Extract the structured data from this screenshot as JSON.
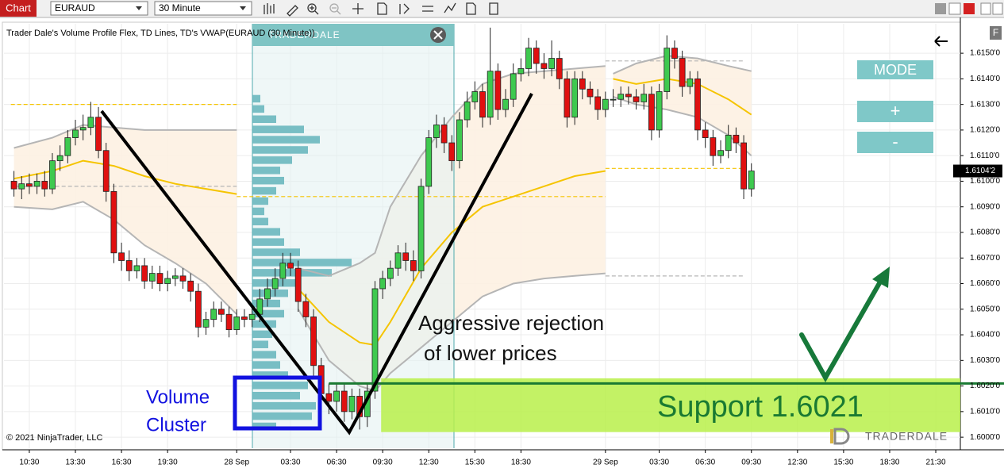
{
  "toolbar": {
    "app": "Chart",
    "instrument": "EURAUD",
    "timeframe": "30 Minute"
  },
  "controls": {
    "mode": "MODE",
    "plus": "+",
    "minus": "-"
  },
  "logo": "TRADERDALE",
  "copyright": "© 2021 NinjaTrader, LLC",
  "axis_button": "F",
  "chart_data": {
    "type": "candlestick",
    "title": "Trader Dale's Volume Profile Flex, TD Lines, TD's VWAP(EURAUD (30 Minute))",
    "up_color": "#3ec94f",
    "down_color": "#e01010",
    "grid": true,
    "xlim": [
      8.85,
      71.1
    ],
    "ylim": [
      1.59957,
      1.61615
    ],
    "xticks": [
      {
        "value": 10.5,
        "label": "10:30"
      },
      {
        "value": 13.5,
        "label": "13:30"
      },
      {
        "value": 16.5,
        "label": "16:30"
      },
      {
        "value": 19.5,
        "label": "19:30"
      },
      {
        "value": 24,
        "label": "28 Sep"
      },
      {
        "value": 27.5,
        "label": "03:30"
      },
      {
        "value": 30.5,
        "label": "06:30"
      },
      {
        "value": 33.5,
        "label": "09:30"
      },
      {
        "value": 36.5,
        "label": "12:30"
      },
      {
        "value": 39.5,
        "label": "15:30"
      },
      {
        "value": 42.5,
        "label": "18:30"
      },
      {
        "value": 48,
        "label": "29 Sep"
      },
      {
        "value": 51.5,
        "label": "03:30"
      },
      {
        "value": 54.5,
        "label": "06:30"
      },
      {
        "value": 57.5,
        "label": "09:30"
      },
      {
        "value": 60.5,
        "label": "12:30"
      },
      {
        "value": 63.5,
        "label": "15:30"
      },
      {
        "value": 66.5,
        "label": "18:30"
      },
      {
        "value": 69.5,
        "label": "21:30"
      }
    ],
    "yticks": [
      {
        "value": 1.6,
        "label": "1.6000'0"
      },
      {
        "value": 1.601,
        "label": "1.6010'0"
      },
      {
        "value": 1.602,
        "label": "1.6020'0"
      },
      {
        "value": 1.603,
        "label": "1.6030'0"
      },
      {
        "value": 1.604,
        "label": "1.6040'0"
      },
      {
        "value": 1.605,
        "label": "1.6050'0"
      },
      {
        "value": 1.606,
        "label": "1.6060'0"
      },
      {
        "value": 1.607,
        "label": "1.6070'0"
      },
      {
        "value": 1.608,
        "label": "1.6080'0"
      },
      {
        "value": 1.609,
        "label": "1.6090'0"
      },
      {
        "value": 1.61,
        "label": "1.6100'0"
      },
      {
        "value": 1.611,
        "label": "1.6110'0"
      },
      {
        "value": 1.612,
        "label": "1.6120'0"
      },
      {
        "value": 1.613,
        "label": "1.6130'0"
      },
      {
        "value": 1.614,
        "label": "1.6140'0"
      },
      {
        "value": 1.615,
        "label": "1.6150'0"
      }
    ],
    "last_price_label": "1.6104'2",
    "x": [
      9.5,
      10,
      10.5,
      11,
      11.5,
      12,
      12.5,
      13,
      13.5,
      14,
      14.5,
      15,
      15.5,
      16,
      16.5,
      17,
      17.5,
      18,
      18.5,
      19,
      19.5,
      20,
      20.5,
      21,
      21.5,
      22,
      22.5,
      23,
      23.5,
      24,
      24.5,
      25,
      25.5,
      26,
      26.5,
      27,
      27.5,
      28,
      28.5,
      29,
      29.5,
      30,
      30.5,
      31,
      31.5,
      32,
      32.5,
      33,
      33.5,
      34,
      34.5,
      35,
      35.5,
      36,
      36.5,
      37,
      37.5,
      38,
      38.5,
      39,
      39.5,
      40,
      40.5,
      41,
      41.5,
      42,
      42.5,
      43,
      43.5,
      44,
      44.5,
      45,
      45.5,
      46,
      46.5,
      47,
      47.5,
      48,
      48.5,
      49,
      49.5,
      50,
      50.5,
      51,
      51.5,
      52,
      52.5,
      53,
      53.5,
      54,
      54.5,
      55,
      55.5,
      56,
      56.5,
      57,
      57.5
    ],
    "ohlc": [
      [
        1.61,
        1.6104,
        1.6094,
        1.6097
      ],
      [
        1.6097,
        1.6102,
        1.6093,
        1.6099
      ],
      [
        1.6099,
        1.6103,
        1.6095,
        1.6098
      ],
      [
        1.6098,
        1.6103,
        1.6095,
        1.61
      ],
      [
        1.61,
        1.6104,
        1.6094,
        1.6097
      ],
      [
        1.6097,
        1.6111,
        1.6095,
        1.6108
      ],
      [
        1.6108,
        1.6114,
        1.6104,
        1.611
      ],
      [
        1.611,
        1.612,
        1.6107,
        1.6117
      ],
      [
        1.6117,
        1.6124,
        1.6114,
        1.612
      ],
      [
        1.612,
        1.6126,
        1.6116,
        1.6121
      ],
      [
        1.6121,
        1.6131,
        1.6118,
        1.6125
      ],
      [
        1.6125,
        1.6129,
        1.6109,
        1.6112
      ],
      [
        1.6112,
        1.6115,
        1.6092,
        1.6096
      ],
      [
        1.6096,
        1.6099,
        1.6068,
        1.6072
      ],
      [
        1.6072,
        1.6076,
        1.6065,
        1.6069
      ],
      [
        1.6069,
        1.6073,
        1.6061,
        1.6065
      ],
      [
        1.6065,
        1.607,
        1.6062,
        1.6067
      ],
      [
        1.6067,
        1.607,
        1.6058,
        1.6061
      ],
      [
        1.6061,
        1.6067,
        1.6058,
        1.6064
      ],
      [
        1.6064,
        1.6067,
        1.6057,
        1.606
      ],
      [
        1.606,
        1.6065,
        1.6057,
        1.6062
      ],
      [
        1.6062,
        1.6066,
        1.6059,
        1.6063
      ],
      [
        1.6063,
        1.6066,
        1.6058,
        1.6061
      ],
      [
        1.6061,
        1.6064,
        1.6053,
        1.6057
      ],
      [
        1.6057,
        1.606,
        1.6039,
        1.6043
      ],
      [
        1.6043,
        1.6049,
        1.604,
        1.6046
      ],
      [
        1.6046,
        1.6053,
        1.6043,
        1.605
      ],
      [
        1.605,
        1.6053,
        1.6045,
        1.6048
      ],
      [
        1.6048,
        1.6051,
        1.6039,
        1.6042
      ],
      [
        1.6042,
        1.605,
        1.604,
        1.6047
      ],
      [
        1.6047,
        1.605,
        1.6043,
        1.6046
      ],
      [
        1.6046,
        1.6051,
        1.6043,
        1.6048
      ],
      [
        1.6048,
        1.6058,
        1.6045,
        1.6054
      ],
      [
        1.6054,
        1.6062,
        1.6051,
        1.6058
      ],
      [
        1.6058,
        1.6066,
        1.6055,
        1.6062
      ],
      [
        1.6062,
        1.6072,
        1.6059,
        1.6068
      ],
      [
        1.6068,
        1.6072,
        1.6063,
        1.6066
      ],
      [
        1.6066,
        1.6069,
        1.6049,
        1.6053
      ],
      [
        1.6053,
        1.6056,
        1.6043,
        1.6047
      ],
      [
        1.6047,
        1.605,
        1.6024,
        1.6028
      ],
      [
        1.6028,
        1.6031,
        1.6013,
        1.6017
      ],
      [
        1.6017,
        1.6021,
        1.6009,
        1.6014
      ],
      [
        1.6014,
        1.6021,
        1.601,
        1.6018
      ],
      [
        1.6018,
        1.6021,
        1.6006,
        1.601
      ],
      [
        1.601,
        1.6019,
        1.6007,
        1.6016
      ],
      [
        1.6016,
        1.6019,
        1.6003,
        1.6008
      ],
      [
        1.6008,
        1.6021,
        1.6004,
        1.6018
      ],
      [
        1.6018,
        1.6061,
        1.6015,
        1.6058
      ],
      [
        1.6058,
        1.6065,
        1.6054,
        1.6062
      ],
      [
        1.6062,
        1.6069,
        1.6059,
        1.6066
      ],
      [
        1.6066,
        1.6075,
        1.6063,
        1.6072
      ],
      [
        1.6072,
        1.6076,
        1.6065,
        1.6069
      ],
      [
        1.6069,
        1.6073,
        1.6061,
        1.6065
      ],
      [
        1.6065,
        1.6101,
        1.6062,
        1.6098
      ],
      [
        1.6098,
        1.612,
        1.6095,
        1.6117
      ],
      [
        1.6117,
        1.6126,
        1.6113,
        1.6122
      ],
      [
        1.6122,
        1.6125,
        1.6111,
        1.6115
      ],
      [
        1.6115,
        1.6118,
        1.6104,
        1.6108
      ],
      [
        1.6108,
        1.6127,
        1.6105,
        1.6124
      ],
      [
        1.6124,
        1.6135,
        1.6121,
        1.6131
      ],
      [
        1.6131,
        1.6139,
        1.6128,
        1.6135
      ],
      [
        1.6135,
        1.6138,
        1.6121,
        1.6125
      ],
      [
        1.6125,
        1.616,
        1.6122,
        1.6143
      ],
      [
        1.6143,
        1.6146,
        1.6124,
        1.6128
      ],
      [
        1.6128,
        1.6136,
        1.6125,
        1.6132
      ],
      [
        1.6132,
        1.6146,
        1.6129,
        1.6142
      ],
      [
        1.6142,
        1.6148,
        1.6139,
        1.6144
      ],
      [
        1.6144,
        1.6156,
        1.6141,
        1.6152
      ],
      [
        1.6152,
        1.6155,
        1.6142,
        1.6146
      ],
      [
        1.6146,
        1.615,
        1.614,
        1.6144
      ],
      [
        1.6144,
        1.6155,
        1.6141,
        1.6148
      ],
      [
        1.6148,
        1.6151,
        1.6136,
        1.614
      ],
      [
        1.614,
        1.6143,
        1.6121,
        1.6125
      ],
      [
        1.6125,
        1.6143,
        1.6122,
        1.614
      ],
      [
        1.614,
        1.6143,
        1.6132,
        1.6136
      ],
      [
        1.6136,
        1.6139,
        1.613,
        1.6133
      ],
      [
        1.6133,
        1.6136,
        1.6124,
        1.6128
      ],
      [
        1.6128,
        1.6135,
        1.6125,
        1.6132
      ],
      [
        1.6132,
        1.6136,
        1.6129,
        1.6132
      ],
      [
        1.6132,
        1.6137,
        1.6129,
        1.6134
      ],
      [
        1.6134,
        1.6137,
        1.613,
        1.6133
      ],
      [
        1.6133,
        1.6136,
        1.6128,
        1.6131
      ],
      [
        1.6131,
        1.6138,
        1.6128,
        1.6134
      ],
      [
        1.6134,
        1.6137,
        1.6116,
        1.612
      ],
      [
        1.612,
        1.6138,
        1.6117,
        1.6135
      ],
      [
        1.6135,
        1.6157,
        1.6132,
        1.6152
      ],
      [
        1.6152,
        1.6155,
        1.6144,
        1.6148
      ],
      [
        1.6148,
        1.6151,
        1.6133,
        1.6137
      ],
      [
        1.6137,
        1.6143,
        1.6134,
        1.614
      ],
      [
        1.614,
        1.6143,
        1.6116,
        1.612
      ],
      [
        1.612,
        1.6123,
        1.6113,
        1.6117
      ],
      [
        1.6117,
        1.612,
        1.6106,
        1.611
      ],
      [
        1.611,
        1.6116,
        1.6107,
        1.6112
      ],
      [
        1.6112,
        1.6122,
        1.6109,
        1.6118
      ],
      [
        1.6118,
        1.6121,
        1.6111,
        1.6115
      ],
      [
        1.6115,
        1.6118,
        1.6093,
        1.6097
      ],
      [
        1.6097,
        1.6107,
        1.6094,
        1.6104
      ]
    ],
    "vwap": {
      "color": "#f5c400",
      "band_color": "#b5b5b5",
      "band_fill": "#fdf1e2",
      "x": [
        9.5,
        12,
        14,
        16,
        18,
        20,
        22,
        24,
        null,
        28,
        30,
        32,
        33,
        34,
        36,
        38,
        40,
        42,
        44,
        46,
        48,
        null,
        48.5,
        50,
        52,
        54,
        56,
        57.5
      ],
      "values": [
        1.6101,
        1.6104,
        1.6108,
        1.6106,
        1.6102,
        1.6099,
        1.6097,
        1.6095,
        null,
        1.6058,
        1.6045,
        1.6037,
        1.6036,
        1.6045,
        1.6066,
        1.608,
        1.609,
        1.6094,
        1.6098,
        1.6102,
        1.6104,
        null,
        1.614,
        1.6138,
        1.614,
        1.6138,
        1.6132,
        1.6126
      ],
      "upper": [
        1.6113,
        1.6117,
        1.6122,
        1.6121,
        1.612,
        1.612,
        1.612,
        1.612,
        null,
        1.6066,
        1.6063,
        1.6068,
        1.6072,
        1.609,
        1.611,
        1.6125,
        1.6138,
        1.6142,
        1.6143,
        1.6144,
        1.6145,
        null,
        1.6142,
        1.6146,
        1.6149,
        1.6148,
        1.6145,
        1.6143
      ],
      "lower": [
        1.609,
        1.6089,
        1.6092,
        1.6085,
        1.6075,
        1.6068,
        1.606,
        1.6048,
        null,
        1.605,
        1.603,
        1.602,
        1.6018,
        1.6025,
        1.6035,
        1.6045,
        1.6055,
        1.606,
        1.6062,
        1.6063,
        1.6064,
        null,
        1.6133,
        1.613,
        1.6128,
        1.6125,
        1.6118,
        1.611
      ]
    },
    "volume_profile": {
      "color": "#63b4bb",
      "prices": [
        1.6004,
        1.6008,
        1.6012,
        1.6016,
        1.602,
        1.6024,
        1.6028,
        1.6032,
        1.6036,
        1.604,
        1.6044,
        1.6048,
        1.6052,
        1.6056,
        1.606,
        1.6064,
        1.6068,
        1.6072,
        1.6076,
        1.608,
        1.6084,
        1.6088,
        1.6092,
        1.6096,
        1.61,
        1.6104,
        1.6108,
        1.6112,
        1.6116,
        1.612,
        1.6124,
        1.6128,
        1.6132
      ],
      "volumes": [
        30,
        75,
        80,
        60,
        70,
        45,
        35,
        30,
        20,
        25,
        30,
        40,
        35,
        45,
        55,
        100,
        125,
        60,
        40,
        35,
        20,
        15,
        20,
        30,
        40,
        35,
        50,
        70,
        85,
        65,
        30,
        15,
        10
      ]
    },
    "levels": [
      {
        "price": 1.613,
        "x": [
          9.3,
          24
        ],
        "color": "#f5c400"
      },
      {
        "price": 1.6098,
        "x": [
          9.3,
          24
        ],
        "color": "#b5b5b5"
      },
      {
        "price": 1.6094,
        "x": [
          24,
          48
        ],
        "color": "#f5c400"
      },
      {
        "price": 1.6147,
        "x": [
          48,
          57
        ],
        "color": "#b5b5b5"
      },
      {
        "price": 1.6105,
        "x": [
          48,
          57
        ],
        "color": "#f5c400"
      },
      {
        "price": 1.6063,
        "x": [
          48,
          57
        ],
        "color": "#b5b5b5"
      }
    ],
    "support": {
      "label": "Support 1.6021",
      "price": 1.6021,
      "line_from": 30,
      "zone": [
        1.6002,
        1.6023
      ],
      "zone_from": 33.4,
      "color": "#1a7a32",
      "zone_color": "#b8f04a"
    },
    "annotations": {
      "rejection": [
        "Aggressive rejection",
        "of lower prices"
      ],
      "cluster": [
        "Volume",
        "Cluster"
      ]
    }
  }
}
